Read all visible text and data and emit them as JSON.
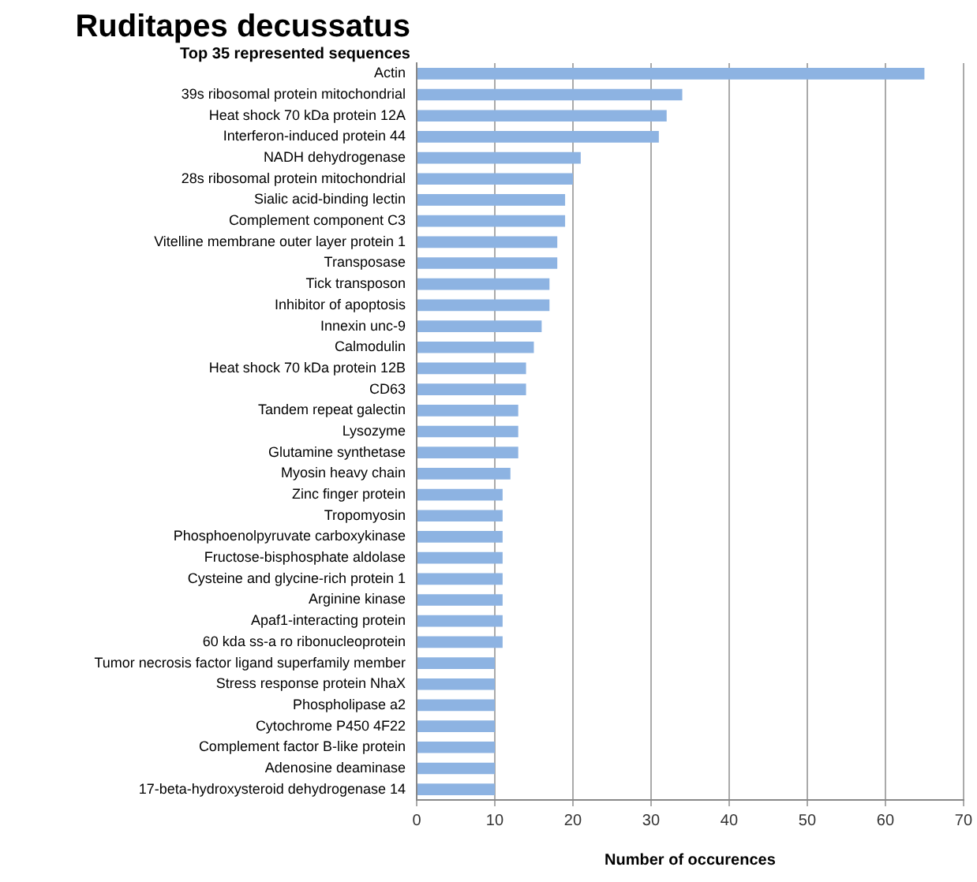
{
  "chart_data": {
    "type": "bar",
    "orientation": "horizontal",
    "title": "Ruditapes decussatus",
    "subtitle": "Top 35 represented sequences",
    "xlabel": "Number of occurences",
    "categories": [
      "Actin",
      "39s ribosomal protein mitochondrial",
      "Heat shock 70 kDa protein 12A",
      "Interferon-induced protein 44",
      "NADH dehydrogenase",
      "28s ribosomal protein mitochondrial",
      "Sialic acid-binding lectin",
      "Complement component C3",
      "Vitelline membrane outer layer protein 1",
      "Transposase",
      "Tick transposon",
      "Inhibitor of apoptosis",
      "Innexin unc-9",
      "Calmodulin",
      "Heat shock 70 kDa protein 12B",
      "CD63",
      "Tandem repeat galectin",
      "Lysozyme",
      "Glutamine synthetase",
      "Myosin heavy chain",
      "Zinc finger protein",
      "Tropomyosin",
      "Phosphoenolpyruvate carboxykinase",
      "Fructose-bisphosphate aldolase",
      "Cysteine and glycine-rich protein 1",
      "Arginine kinase",
      "Apaf1-interacting protein",
      "60 kda ss-a ro ribonucleoprotein",
      "Tumor necrosis factor ligand superfamily member",
      "Stress response protein NhaX",
      "Phospholipase a2",
      "Cytochrome P450 4F22",
      "Complement factor B-like protein",
      "Adenosine deaminase",
      "17-beta-hydroxysteroid dehydrogenase 14"
    ],
    "values": [
      65,
      34,
      32,
      31,
      21,
      20,
      19,
      19,
      18,
      18,
      17,
      17,
      16,
      15,
      14,
      14,
      13,
      13,
      13,
      12,
      11,
      11,
      11,
      11,
      11,
      11,
      11,
      11,
      10,
      10,
      10,
      10,
      10,
      10,
      10
    ],
    "color": "#8db3e2",
    "xlim": [
      0,
      70
    ],
    "xticks": [
      0,
      10,
      20,
      30,
      40,
      50,
      60,
      70
    ],
    "grid": "x"
  }
}
